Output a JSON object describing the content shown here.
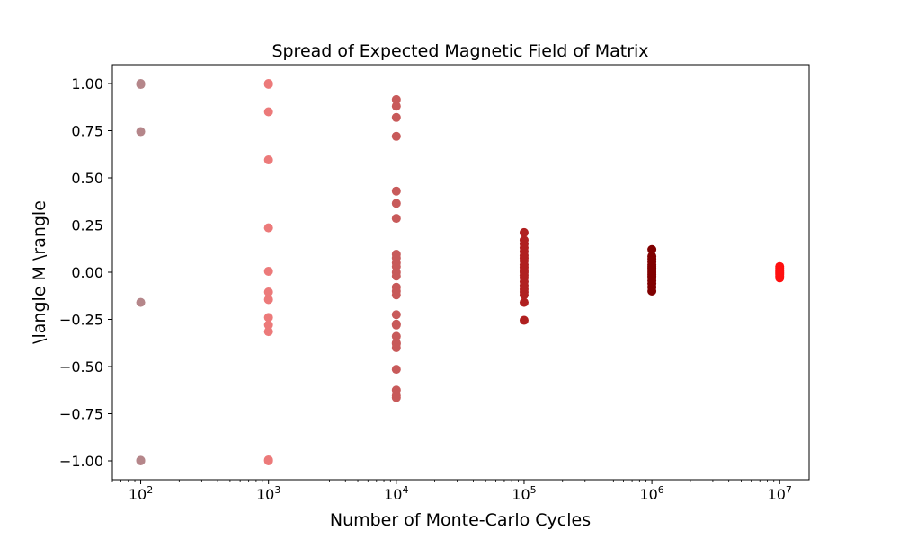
{
  "chart_data": {
    "type": "scatter",
    "title": "Spread of Expected Magnetic Field of Matrix",
    "xlabel": "Number of Monte-Carlo Cycles",
    "ylabel": "\\langle M \\rangle",
    "xscale": "log",
    "xlim": [
      60,
      17000000
    ],
    "ylim": [
      -1.1,
      1.1
    ],
    "grid": false,
    "legend": "none",
    "y_ticks": [
      {
        "value": 1.0,
        "label": "1.00"
      },
      {
        "value": 0.75,
        "label": "0.75"
      },
      {
        "value": 0.5,
        "label": "0.50"
      },
      {
        "value": 0.25,
        "label": "0.25"
      },
      {
        "value": 0.0,
        "label": "0.00"
      },
      {
        "value": -0.25,
        "label": "−0.25"
      },
      {
        "value": -0.5,
        "label": "−0.50"
      },
      {
        "value": -0.75,
        "label": "−0.75"
      },
      {
        "value": -1.0,
        "label": "−1.00"
      }
    ],
    "x_ticks": [
      {
        "value": 100,
        "base": "10",
        "exp": "2"
      },
      {
        "value": 1000,
        "base": "10",
        "exp": "3"
      },
      {
        "value": 10000,
        "base": "10",
        "exp": "4"
      },
      {
        "value": 100000,
        "base": "10",
        "exp": "5"
      },
      {
        "value": 1000000,
        "base": "10",
        "exp": "6"
      },
      {
        "value": 10000000,
        "base": "10",
        "exp": "7"
      }
    ],
    "series": [
      {
        "x": 100,
        "color": "#b5868a",
        "y": [
          1.0,
          0.995,
          0.745,
          -0.16,
          -1.0,
          -0.997
        ]
      },
      {
        "x": 1000,
        "color": "#ec7a7a",
        "y": [
          1.0,
          0.996,
          0.85,
          0.595,
          0.235,
          0.005,
          -0.105,
          -0.145,
          -0.24,
          -0.28,
          -0.315,
          -1.0,
          -0.995
        ]
      },
      {
        "x": 10000,
        "color": "#c85a5a",
        "y": [
          0.915,
          0.88,
          0.82,
          0.72,
          0.43,
          0.365,
          0.285,
          0.095,
          0.075,
          0.05,
          0.03,
          0.0,
          -0.02,
          -0.08,
          -0.1,
          -0.12,
          -0.225,
          -0.275,
          -0.28,
          -0.34,
          -0.375,
          -0.38,
          -0.4,
          -0.515,
          -0.625,
          -0.655,
          -0.665
        ]
      },
      {
        "x": 100000,
        "color": "#b02020",
        "y": [
          0.21,
          0.17,
          0.15,
          0.13,
          0.11,
          0.09,
          0.075,
          0.06,
          0.04,
          0.025,
          0.01,
          0.0,
          -0.015,
          -0.03,
          -0.05,
          -0.07,
          -0.09,
          -0.105,
          -0.12,
          -0.16,
          -0.255
        ]
      },
      {
        "x": 1000000,
        "color": "#800000",
        "y": [
          0.12,
          0.085,
          0.07,
          0.055,
          0.04,
          0.03,
          0.02,
          0.01,
          0.0,
          -0.01,
          -0.02,
          -0.03,
          -0.045,
          -0.06,
          -0.08,
          -0.1
        ]
      },
      {
        "x": 10000000,
        "color": "#ff1010",
        "y": [
          0.03,
          0.02,
          0.012,
          0.006,
          0.0,
          -0.006,
          -0.012,
          -0.02,
          -0.03
        ]
      }
    ]
  }
}
